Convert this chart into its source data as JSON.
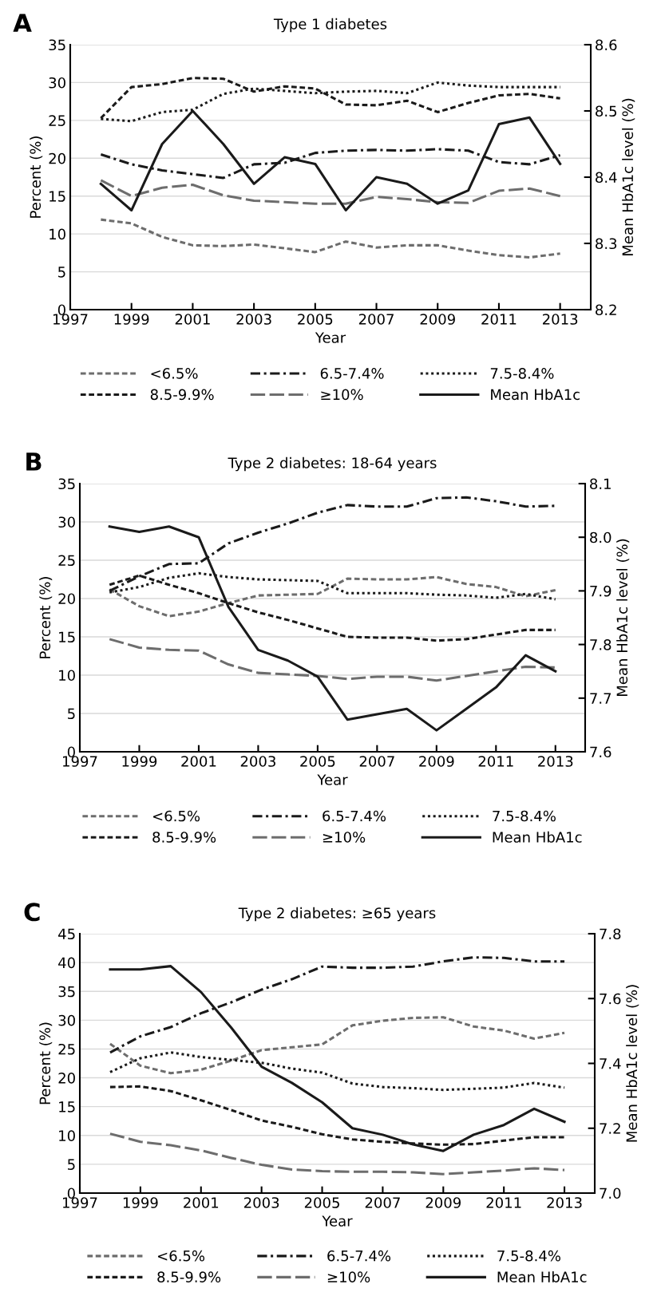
{
  "chart_data": [
    {
      "type": "line",
      "title": "Type 1 diabetes",
      "annotations": [
        "A"
      ],
      "xlabel": "Year",
      "ylabel": "Percent (%)",
      "y2label": "Mean HbA1c level (%)",
      "x": [
        1998,
        1999,
        2000,
        2001,
        2002,
        2003,
        2004,
        2005,
        2006,
        2007,
        2008,
        2009,
        2010,
        2011,
        2012,
        2013
      ],
      "xlim": [
        1997,
        2014
      ],
      "xticks": [
        1997,
        1999,
        2001,
        2003,
        2005,
        2007,
        2009,
        2011,
        2013
      ],
      "ylim": [
        0,
        35
      ],
      "yticks": [
        0,
        5,
        10,
        15,
        20,
        25,
        30,
        35
      ],
      "y2lim": [
        8.2,
        8.6
      ],
      "y2ticks": [
        {
          "value": 8.2,
          "label": "8.2"
        },
        {
          "value": 8.3,
          "label": "8.3"
        },
        {
          "value": 8.4,
          "label": "8.4"
        },
        {
          "value": 8.5,
          "label": "8.5"
        },
        {
          "value": 8.6,
          "label": "8.6"
        }
      ],
      "grid": "y",
      "legend": "bottom",
      "series": [
        {
          "name": "<6.5%",
          "color": "#6d6d6d",
          "line_style": "dashed",
          "values": [
            11.9,
            11.4,
            9.6,
            8.5,
            8.4,
            8.6,
            8.1,
            7.6,
            9.0,
            8.2,
            8.5,
            8.5,
            7.8,
            7.2,
            6.9,
            7.4
          ]
        },
        {
          "name": "6.5-7.4%",
          "color": "#1a1a1a",
          "line_style": "dashdot",
          "values": [
            20.5,
            19.2,
            18.4,
            17.9,
            17.4,
            19.2,
            19.4,
            20.7,
            21.0,
            21.1,
            21.0,
            21.2,
            21.0,
            19.5,
            19.2,
            20.4
          ]
        },
        {
          "name": "7.5-8.4%",
          "color": "#1a1a1a",
          "line_style": "dotted",
          "values": [
            25.2,
            24.9,
            26.1,
            26.4,
            28.5,
            29.2,
            28.9,
            28.6,
            28.8,
            28.9,
            28.6,
            30.0,
            29.6,
            29.4,
            29.4,
            29.4
          ]
        },
        {
          "name": "8.5-9.9%",
          "color": "#1a1a1a",
          "line_style": "dashed",
          "values": [
            25.3,
            29.4,
            29.8,
            30.6,
            30.5,
            28.8,
            29.5,
            29.2,
            27.1,
            27.0,
            27.6,
            26.1,
            27.3,
            28.3,
            28.5,
            27.9
          ]
        },
        {
          "name": "≥10%",
          "color": "#6d6d6d",
          "line_style": "longdash",
          "values": [
            17.1,
            15.0,
            16.1,
            16.5,
            15.1,
            14.4,
            14.2,
            14.0,
            14.0,
            14.9,
            14.6,
            14.2,
            14.1,
            15.7,
            16.0,
            15.0
          ]
        },
        {
          "name": "Mean HbA1c",
          "color": "#1a1a1a",
          "line_style": "solid",
          "axis": "y2",
          "values": [
            8.39,
            8.35,
            8.45,
            8.5,
            8.45,
            8.39,
            8.43,
            8.42,
            8.35,
            8.4,
            8.39,
            8.36,
            8.38,
            8.48,
            8.49,
            8.42
          ]
        }
      ]
    },
    {
      "type": "line",
      "title": "Type 2 diabetes: 18-64 years",
      "annotations": [
        "B"
      ],
      "xlabel": "Year",
      "ylabel": "Percent (%)",
      "y2label": "Mean HbA1c level (%)",
      "x": [
        1998,
        1999,
        2000,
        2001,
        2002,
        2003,
        2004,
        2005,
        2006,
        2007,
        2008,
        2009,
        2010,
        2011,
        2012,
        2013
      ],
      "xlim": [
        1997,
        2014
      ],
      "xticks": [
        1997,
        1999,
        2001,
        2003,
        2005,
        2007,
        2009,
        2011,
        2013
      ],
      "ylim": [
        0,
        35
      ],
      "yticks": [
        0,
        5,
        10,
        15,
        20,
        25,
        30,
        35
      ],
      "y2lim": [
        7.6,
        8.1
      ],
      "y2ticks": [
        {
          "value": 7.6,
          "label": "7.6"
        },
        {
          "value": 7.7,
          "label": "7.7"
        },
        {
          "value": 7.8,
          "label": "7.8"
        },
        {
          "value": 7.9,
          "label": "7.9"
        },
        {
          "value": 8.0,
          "label": "8.0"
        },
        {
          "value": 8.1,
          "label": "8.1"
        }
      ],
      "grid": "y",
      "legend": "bottom",
      "series": [
        {
          "name": "<6.5%",
          "color": "#6d6d6d",
          "line_style": "dashed",
          "values": [
            21.2,
            19.0,
            17.7,
            18.3,
            19.4,
            20.4,
            20.5,
            20.6,
            22.6,
            22.5,
            22.5,
            22.8,
            21.9,
            21.5,
            20.3,
            21.1
          ]
        },
        {
          "name": "6.5-7.4%",
          "color": "#1a1a1a",
          "line_style": "dashdot",
          "values": [
            21.0,
            22.9,
            24.5,
            24.6,
            27.2,
            28.6,
            29.8,
            31.2,
            32.2,
            32.0,
            32.0,
            33.1,
            33.2,
            32.7,
            32.0,
            32.1
          ]
        },
        {
          "name": "7.5-8.4%",
          "color": "#1a1a1a",
          "line_style": "dotted",
          "values": [
            20.8,
            21.5,
            22.7,
            23.3,
            22.8,
            22.5,
            22.4,
            22.3,
            20.7,
            20.7,
            20.7,
            20.5,
            20.4,
            20.1,
            20.6,
            19.9
          ]
        },
        {
          "name": "8.5-9.9%",
          "color": "#1a1a1a",
          "line_style": "dashed",
          "values": [
            21.8,
            23.0,
            21.8,
            20.7,
            19.4,
            18.2,
            17.2,
            16.1,
            15.0,
            14.9,
            14.9,
            14.5,
            14.7,
            15.3,
            15.9,
            15.9
          ]
        },
        {
          "name": "≥10%",
          "color": "#6d6d6d",
          "line_style": "longdash",
          "values": [
            14.7,
            13.6,
            13.3,
            13.2,
            11.4,
            10.3,
            10.1,
            9.9,
            9.5,
            9.8,
            9.8,
            9.3,
            9.9,
            10.5,
            11.1,
            11.0
          ]
        },
        {
          "name": "Mean HbA1c",
          "color": "#1a1a1a",
          "line_style": "solid",
          "axis": "y2",
          "values": [
            8.02,
            8.01,
            8.02,
            8.0,
            7.87,
            7.79,
            7.77,
            7.74,
            7.66,
            7.67,
            7.68,
            7.64,
            7.68,
            7.72,
            7.78,
            7.75
          ]
        }
      ]
    },
    {
      "type": "line",
      "title": "Type 2 diabetes: ≥65 years",
      "annotations": [
        "C"
      ],
      "xlabel": "Year",
      "ylabel": "Percent (%)",
      "y2label": "Mean HbA1c level (%)",
      "x": [
        1998,
        1999,
        2000,
        2001,
        2002,
        2003,
        2004,
        2005,
        2006,
        2007,
        2008,
        2009,
        2010,
        2011,
        2012,
        2013
      ],
      "xlim": [
        1997,
        2014
      ],
      "xticks": [
        1997,
        1999,
        2001,
        2003,
        2005,
        2007,
        2009,
        2011,
        2013
      ],
      "ylim": [
        0,
        45
      ],
      "yticks": [
        0,
        5,
        10,
        15,
        20,
        25,
        30,
        35,
        40,
        45
      ],
      "y2lim": [
        7.0,
        7.8
      ],
      "y2ticks": [
        {
          "value": 7.0,
          "label": "7.0"
        },
        {
          "value": 7.2,
          "label": "7.2"
        },
        {
          "value": 7.4,
          "label": "7.4"
        },
        {
          "value": 7.6,
          "label": "7.6"
        },
        {
          "value": 7.8,
          "label": "7.8"
        }
      ],
      "grid": "y",
      "legend": "bottom",
      "series": [
        {
          "name": "<6.5%",
          "color": "#6d6d6d",
          "line_style": "dashed",
          "values": [
            25.9,
            22.1,
            20.8,
            21.4,
            23.0,
            24.8,
            25.3,
            25.8,
            29.1,
            29.9,
            30.4,
            30.5,
            28.9,
            28.2,
            26.8,
            27.8
          ]
        },
        {
          "name": "6.5-7.4%",
          "color": "#1a1a1a",
          "line_style": "dashdot",
          "values": [
            24.4,
            27.2,
            28.8,
            31.2,
            33.1,
            35.3,
            37.1,
            39.3,
            39.1,
            39.1,
            39.3,
            40.2,
            40.9,
            40.8,
            40.2,
            40.2
          ]
        },
        {
          "name": "7.5-8.4%",
          "color": "#1a1a1a",
          "line_style": "dotted",
          "values": [
            21.0,
            23.4,
            24.4,
            23.6,
            23.1,
            22.6,
            21.6,
            20.9,
            19.0,
            18.4,
            18.2,
            17.9,
            18.1,
            18.3,
            19.1,
            18.3
          ]
        },
        {
          "name": "8.5-9.9%",
          "color": "#1a1a1a",
          "line_style": "dashed",
          "values": [
            18.4,
            18.5,
            17.7,
            16.1,
            14.4,
            12.6,
            11.5,
            10.2,
            9.3,
            8.9,
            8.6,
            8.4,
            8.5,
            9.1,
            9.7,
            9.7
          ]
        },
        {
          "name": "≥10%",
          "color": "#6d6d6d",
          "line_style": "longdash",
          "values": [
            10.3,
            8.9,
            8.3,
            7.4,
            6.1,
            4.9,
            4.1,
            3.8,
            3.7,
            3.7,
            3.6,
            3.3,
            3.6,
            3.9,
            4.3,
            4.0
          ]
        },
        {
          "name": "Mean HbA1c",
          "color": "#1a1a1a",
          "line_style": "solid",
          "axis": "y2",
          "values": [
            7.69,
            7.69,
            7.7,
            7.62,
            7.51,
            7.39,
            7.34,
            7.28,
            7.2,
            7.18,
            7.15,
            7.13,
            7.18,
            7.21,
            7.26,
            7.22
          ]
        }
      ]
    }
  ]
}
